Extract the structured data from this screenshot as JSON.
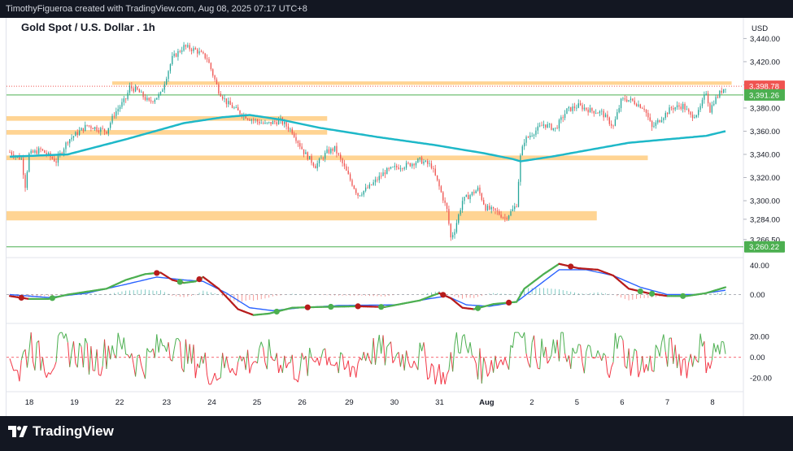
{
  "header": {
    "caption": "TimothyFigueroa created with TradingView.com, Aug 08, 2025 07:17 UTC+8"
  },
  "footer": {
    "brand": "TradingView"
  },
  "colors": {
    "up": "#26a69a",
    "down": "#ef5350",
    "ma": "#1eb8c8",
    "zone": "#ffcc80",
    "green_line": "#4caf50",
    "macd_fast_up": "#4caf50",
    "macd_fast_down": "#b71c1c",
    "macd_slow": "#2962ff",
    "osc_up": "#4caf50",
    "osc_down": "#f23645"
  },
  "chart_data": {
    "type": "candlestick",
    "title": "Gold Spot / U.S. Dollar . 1h",
    "currency": "USD",
    "y_ticks": [
      "3,440.00",
      "3,420.00",
      "3,400.00",
      "3,380.00",
      "3,360.00",
      "3,340.00",
      "3,320.00",
      "3,300.00",
      "3,284.00",
      "3,266.50"
    ],
    "price_tags": [
      {
        "value": "3,398.78",
        "style": "last",
        "color": "#ef5350"
      },
      {
        "value": "3,391.26",
        "style": "level",
        "color": "#4caf50"
      },
      {
        "value": "3,260.22",
        "style": "level",
        "color": "#4caf50"
      }
    ],
    "x_labels": [
      "18",
      "19",
      "22",
      "23",
      "24",
      "25",
      "26",
      "29",
      "30",
      "31",
      "Aug",
      "2",
      "5",
      "6",
      "7",
      "8"
    ],
    "ylim": [
      3253,
      3448
    ],
    "zones": [
      {
        "from": 3369,
        "to": 3373,
        "x_start": 0,
        "x_end": 0.44
      },
      {
        "from": 3357,
        "to": 3361,
        "x_start": 0,
        "x_end": 0.44
      },
      {
        "from": 3335,
        "to": 3339,
        "x_start": 0,
        "x_end": 0.88
      },
      {
        "from": 3283,
        "to": 3291,
        "x_start": 0,
        "x_end": 0.81
      },
      {
        "from": 3400,
        "to": 3403,
        "x_start": 0.145,
        "x_end": 0.995
      }
    ],
    "levels": [
      3391.26,
      3260.22
    ],
    "close_anchors": [
      [
        0,
        3342
      ],
      [
        6,
        3336
      ],
      [
        8,
        3313
      ],
      [
        10,
        3340
      ],
      [
        16,
        3344
      ],
      [
        24,
        3334
      ],
      [
        30,
        3352
      ],
      [
        40,
        3365
      ],
      [
        50,
        3360
      ],
      [
        54,
        3375
      ],
      [
        60,
        3388
      ],
      [
        62,
        3398
      ],
      [
        66,
        3395
      ],
      [
        72,
        3385
      ],
      [
        78,
        3392
      ],
      [
        84,
        3423
      ],
      [
        90,
        3433
      ],
      [
        96,
        3430
      ],
      [
        102,
        3423
      ],
      [
        108,
        3395
      ],
      [
        112,
        3385
      ],
      [
        118,
        3377
      ],
      [
        124,
        3371
      ],
      [
        132,
        3366
      ],
      [
        140,
        3369
      ],
      [
        146,
        3360
      ],
      [
        152,
        3342
      ],
      [
        158,
        3330
      ],
      [
        164,
        3342
      ],
      [
        168,
        3345
      ],
      [
        172,
        3332
      ],
      [
        176,
        3318
      ],
      [
        180,
        3305
      ],
      [
        186,
        3312
      ],
      [
        194,
        3325
      ],
      [
        200,
        3329
      ],
      [
        206,
        3331
      ],
      [
        212,
        3335
      ],
      [
        218,
        3330
      ],
      [
        222,
        3312
      ],
      [
        226,
        3292
      ],
      [
        228,
        3268
      ],
      [
        230,
        3275
      ],
      [
        234,
        3300
      ],
      [
        238,
        3305
      ],
      [
        242,
        3310
      ],
      [
        246,
        3294
      ],
      [
        252,
        3290
      ],
      [
        256,
        3285
      ],
      [
        260,
        3292
      ],
      [
        262,
        3297
      ],
      [
        264,
        3338
      ],
      [
        266,
        3352
      ],
      [
        270,
        3358
      ],
      [
        276,
        3366
      ],
      [
        282,
        3362
      ],
      [
        288,
        3378
      ],
      [
        294,
        3382
      ],
      [
        300,
        3378
      ],
      [
        306,
        3376
      ],
      [
        312,
        3364
      ],
      [
        316,
        3386
      ],
      [
        318,
        3388
      ],
      [
        322,
        3386
      ],
      [
        328,
        3380
      ],
      [
        332,
        3363
      ],
      [
        336,
        3370
      ],
      [
        342,
        3380
      ],
      [
        348,
        3382
      ],
      [
        352,
        3373
      ],
      [
        356,
        3376
      ],
      [
        360,
        3394
      ],
      [
        362,
        3378
      ],
      [
        364,
        3386
      ],
      [
        368,
        3395
      ],
      [
        370,
        3398.78
      ]
    ],
    "ma_anchors": [
      [
        0,
        3338
      ],
      [
        30,
        3340
      ],
      [
        60,
        3353
      ],
      [
        90,
        3367
      ],
      [
        110,
        3372
      ],
      [
        124,
        3374
      ],
      [
        140,
        3370
      ],
      [
        160,
        3363
      ],
      [
        190,
        3355
      ],
      [
        220,
        3348
      ],
      [
        245,
        3341
      ],
      [
        260,
        3336
      ],
      [
        264,
        3334
      ],
      [
        280,
        3338
      ],
      [
        300,
        3344
      ],
      [
        320,
        3350
      ],
      [
        340,
        3353
      ],
      [
        360,
        3356
      ],
      [
        370,
        3360
      ]
    ],
    "bars_total": 371,
    "macd": {
      "y_ticks": [
        "40.00",
        "0.00"
      ],
      "ylim": [
        -35,
        45
      ],
      "fast_anchors": [
        [
          0,
          -2
        ],
        [
          10,
          -6
        ],
        [
          20,
          -6
        ],
        [
          30,
          0
        ],
        [
          50,
          8
        ],
        [
          60,
          20
        ],
        [
          70,
          28
        ],
        [
          78,
          30
        ],
        [
          84,
          20
        ],
        [
          90,
          16
        ],
        [
          96,
          18
        ],
        [
          100,
          24
        ],
        [
          108,
          8
        ],
        [
          118,
          -20
        ],
        [
          126,
          -28
        ],
        [
          134,
          -26
        ],
        [
          146,
          -18
        ],
        [
          160,
          -17
        ],
        [
          180,
          -16
        ],
        [
          194,
          -17
        ],
        [
          212,
          -8
        ],
        [
          222,
          2
        ],
        [
          228,
          -5
        ],
        [
          234,
          -18
        ],
        [
          240,
          -20
        ],
        [
          250,
          -13
        ],
        [
          262,
          -10
        ],
        [
          266,
          8
        ],
        [
          276,
          28
        ],
        [
          284,
          42
        ],
        [
          294,
          36
        ],
        [
          304,
          34
        ],
        [
          312,
          26
        ],
        [
          320,
          8
        ],
        [
          330,
          2
        ],
        [
          340,
          -2
        ],
        [
          350,
          -2
        ],
        [
          360,
          2
        ],
        [
          370,
          10
        ]
      ],
      "slow_anchors": [
        [
          0,
          0
        ],
        [
          20,
          -4
        ],
        [
          40,
          2
        ],
        [
          60,
          14
        ],
        [
          76,
          24
        ],
        [
          90,
          20
        ],
        [
          100,
          18
        ],
        [
          112,
          2
        ],
        [
          124,
          -18
        ],
        [
          136,
          -22
        ],
        [
          150,
          -18
        ],
        [
          170,
          -15
        ],
        [
          200,
          -14
        ],
        [
          216,
          -6
        ],
        [
          226,
          -2
        ],
        [
          236,
          -14
        ],
        [
          248,
          -16
        ],
        [
          262,
          -10
        ],
        [
          272,
          10
        ],
        [
          284,
          34
        ],
        [
          298,
          34
        ],
        [
          312,
          26
        ],
        [
          326,
          10
        ],
        [
          340,
          0
        ],
        [
          355,
          0
        ],
        [
          370,
          6
        ]
      ],
      "cross_dots": [
        {
          "bar": 6,
          "color": "#b71c1c"
        },
        {
          "bar": 22,
          "color": "#4caf50"
        },
        {
          "bar": 76,
          "color": "#b71c1c"
        },
        {
          "bar": 88,
          "color": "#4caf50"
        },
        {
          "bar": 98,
          "color": "#b71c1c"
        },
        {
          "bar": 138,
          "color": "#4caf50"
        },
        {
          "bar": 154,
          "color": "#b71c1c"
        },
        {
          "bar": 166,
          "color": "#4caf50"
        },
        {
          "bar": 180,
          "color": "#b71c1c"
        },
        {
          "bar": 192,
          "color": "#4caf50"
        },
        {
          "bar": 224,
          "color": "#b71c1c"
        },
        {
          "bar": 242,
          "color": "#4caf50"
        },
        {
          "bar": 258,
          "color": "#b71c1c"
        },
        {
          "bar": 290,
          "color": "#b71c1c"
        },
        {
          "bar": 326,
          "color": "#4caf50"
        },
        {
          "bar": 332,
          "color": "#4caf50"
        },
        {
          "bar": 348,
          "color": "#4caf50"
        }
      ]
    },
    "oscillator": {
      "y_ticks": [
        "20.00",
        "0.00",
        "-20.00"
      ],
      "ylim": [
        -30,
        28
      ]
    }
  }
}
